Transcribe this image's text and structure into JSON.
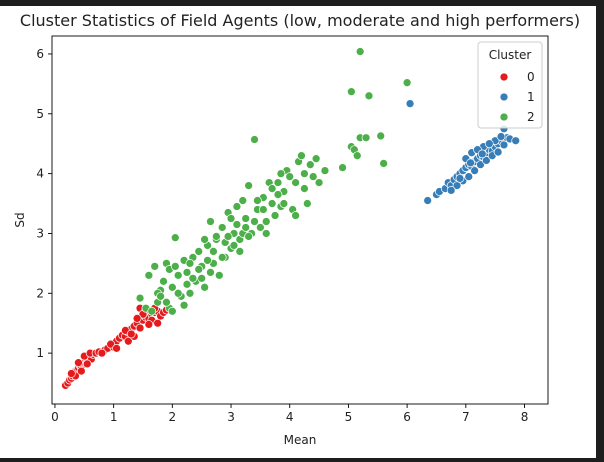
{
  "chart_data": {
    "type": "scatter",
    "title": "Cluster Statistics of Field Agents (low, moderate and high performers)",
    "xlabel": "Mean",
    "ylabel": "Sd",
    "xlim": [
      -0.05,
      8.4
    ],
    "ylim": [
      0.15,
      6.3
    ],
    "xticks": [
      0,
      1,
      2,
      3,
      4,
      5,
      6,
      7,
      8
    ],
    "yticks": [
      1,
      2,
      3,
      4,
      5,
      6
    ],
    "grid": false,
    "legend": {
      "title": "Cluster",
      "placement": "top-right"
    },
    "series": [
      {
        "name": "0",
        "color": "#e41a1c",
        "points": [
          [
            0.18,
            0.46
          ],
          [
            0.22,
            0.5
          ],
          [
            0.25,
            0.55
          ],
          [
            0.28,
            0.58
          ],
          [
            0.3,
            0.62
          ],
          [
            0.32,
            0.66
          ],
          [
            0.35,
            0.7
          ],
          [
            0.38,
            0.72
          ],
          [
            0.4,
            0.76
          ],
          [
            0.42,
            0.8
          ],
          [
            0.45,
            0.78
          ],
          [
            0.48,
            0.84
          ],
          [
            0.5,
            0.86
          ],
          [
            0.52,
            0.9
          ],
          [
            0.55,
            0.88
          ],
          [
            0.58,
            0.92
          ],
          [
            0.6,
            0.95
          ],
          [
            0.62,
            0.9
          ],
          [
            0.65,
            0.98
          ],
          [
            0.35,
            0.62
          ],
          [
            0.45,
            0.7
          ],
          [
            0.55,
            0.82
          ],
          [
            0.28,
            0.66
          ],
          [
            0.4,
            0.84
          ],
          [
            0.5,
            0.95
          ],
          [
            0.6,
            1.0
          ],
          [
            0.7,
            1.0
          ],
          [
            0.75,
            1.02
          ],
          [
            0.85,
            1.05
          ],
          [
            0.9,
            1.08
          ],
          [
            1.0,
            1.1
          ],
          [
            1.05,
            1.2
          ],
          [
            1.1,
            1.25
          ],
          [
            1.15,
            1.3
          ],
          [
            1.2,
            1.28
          ],
          [
            1.25,
            1.35
          ],
          [
            1.3,
            1.4
          ],
          [
            1.35,
            1.45
          ],
          [
            1.4,
            1.5
          ],
          [
            1.45,
            1.42
          ],
          [
            1.5,
            1.55
          ],
          [
            1.55,
            1.6
          ],
          [
            1.6,
            1.58
          ],
          [
            1.65,
            1.65
          ],
          [
            1.7,
            1.68
          ],
          [
            1.75,
            1.7
          ],
          [
            1.8,
            1.62
          ],
          [
            1.45,
            1.75
          ],
          [
            1.55,
            1.72
          ],
          [
            1.65,
            1.55
          ],
          [
            1.85,
            1.68
          ],
          [
            1.9,
            1.72
          ],
          [
            1.25,
            1.2
          ],
          [
            1.35,
            1.28
          ],
          [
            0.95,
            1.15
          ],
          [
            1.75,
            1.5
          ],
          [
            1.5,
            1.65
          ],
          [
            1.6,
            1.48
          ],
          [
            1.2,
            1.38
          ],
          [
            1.4,
            1.58
          ],
          [
            0.8,
            1.0
          ],
          [
            1.05,
            1.08
          ],
          [
            1.3,
            1.32
          ],
          [
            1.7,
            1.75
          ]
        ]
      },
      {
        "name": "1",
        "color": "#377eb8",
        "points": [
          [
            6.05,
            5.17
          ],
          [
            6.35,
            3.55
          ],
          [
            6.5,
            3.65
          ],
          [
            6.55,
            3.7
          ],
          [
            6.65,
            3.75
          ],
          [
            6.7,
            3.85
          ],
          [
            6.75,
            3.8
          ],
          [
            6.8,
            3.9
          ],
          [
            6.85,
            3.95
          ],
          [
            6.9,
            4.0
          ],
          [
            6.95,
            4.05
          ],
          [
            7.0,
            4.1
          ],
          [
            7.05,
            4.15
          ],
          [
            7.1,
            4.12
          ],
          [
            7.15,
            4.2
          ],
          [
            7.2,
            4.25
          ],
          [
            7.25,
            4.3
          ],
          [
            7.3,
            4.28
          ],
          [
            7.35,
            4.35
          ],
          [
            7.4,
            4.4
          ],
          [
            7.45,
            4.38
          ],
          [
            7.5,
            4.45
          ],
          [
            7.55,
            4.5
          ],
          [
            7.6,
            4.55
          ],
          [
            7.65,
            4.48
          ],
          [
            7.7,
            4.6
          ],
          [
            7.75,
            4.58
          ],
          [
            7.85,
            4.55
          ],
          [
            7.65,
            4.75
          ],
          [
            6.95,
            3.88
          ],
          [
            7.05,
            3.95
          ],
          [
            7.15,
            4.05
          ],
          [
            7.25,
            4.15
          ],
          [
            7.35,
            4.22
          ],
          [
            7.45,
            4.3
          ],
          [
            7.55,
            4.36
          ],
          [
            6.85,
            3.8
          ],
          [
            6.75,
            3.72
          ],
          [
            7.0,
            4.25
          ],
          [
            7.1,
            4.35
          ],
          [
            7.3,
            4.45
          ],
          [
            7.5,
            4.55
          ],
          [
            7.2,
            4.4
          ],
          [
            7.4,
            4.5
          ],
          [
            6.9,
            3.92
          ],
          [
            7.6,
            4.62
          ],
          [
            7.08,
            4.18
          ],
          [
            7.28,
            4.33
          ]
        ]
      },
      {
        "name": "2",
        "color": "#4daf4a",
        "points": [
          [
            1.45,
            1.92
          ],
          [
            1.55,
            1.75
          ],
          [
            1.6,
            2.3
          ],
          [
            1.7,
            2.45
          ],
          [
            1.75,
            1.85
          ],
          [
            1.8,
            2.05
          ],
          [
            1.85,
            2.2
          ],
          [
            1.9,
            2.5
          ],
          [
            1.95,
            2.4
          ],
          [
            2.0,
            2.1
          ],
          [
            2.05,
            2.93
          ],
          [
            2.1,
            2.3
          ],
          [
            2.15,
            1.95
          ],
          [
            2.2,
            2.55
          ],
          [
            2.25,
            2.35
          ],
          [
            2.3,
            2.0
          ],
          [
            2.35,
            2.6
          ],
          [
            2.4,
            2.2
          ],
          [
            2.45,
            2.7
          ],
          [
            2.5,
            2.45
          ],
          [
            2.55,
            2.1
          ],
          [
            2.6,
            2.8
          ],
          [
            2.65,
            3.2
          ],
          [
            2.7,
            2.5
          ],
          [
            2.75,
            2.9
          ],
          [
            2.8,
            2.3
          ],
          [
            2.85,
            3.1
          ],
          [
            2.9,
            2.6
          ],
          [
            2.95,
            3.35
          ],
          [
            3.0,
            2.75
          ],
          [
            3.05,
            3.0
          ],
          [
            3.1,
            3.45
          ],
          [
            3.15,
            2.9
          ],
          [
            3.2,
            3.55
          ],
          [
            3.25,
            3.25
          ],
          [
            3.3,
            3.8
          ],
          [
            3.35,
            3.0
          ],
          [
            3.4,
            4.57
          ],
          [
            3.45,
            3.4
          ],
          [
            3.5,
            3.1
          ],
          [
            3.55,
            3.6
          ],
          [
            3.6,
            3.2
          ],
          [
            3.65,
            3.85
          ],
          [
            3.7,
            3.5
          ],
          [
            3.75,
            3.3
          ],
          [
            3.8,
            3.85
          ],
          [
            3.85,
            3.45
          ],
          [
            3.9,
            3.7
          ],
          [
            3.95,
            4.05
          ],
          [
            4.0,
            3.95
          ],
          [
            4.05,
            3.4
          ],
          [
            4.1,
            3.3
          ],
          [
            4.15,
            4.2
          ],
          [
            4.2,
            4.3
          ],
          [
            4.25,
            3.75
          ],
          [
            4.3,
            3.5
          ],
          [
            4.35,
            4.15
          ],
          [
            4.4,
            3.95
          ],
          [
            4.5,
            3.85
          ],
          [
            4.6,
            4.05
          ],
          [
            4.9,
            4.1
          ],
          [
            5.05,
            4.45
          ],
          [
            5.1,
            4.4
          ],
          [
            5.15,
            4.3
          ],
          [
            5.05,
            5.37
          ],
          [
            5.2,
            4.6
          ],
          [
            5.3,
            4.6
          ],
          [
            5.35,
            5.3
          ],
          [
            5.55,
            4.63
          ],
          [
            5.6,
            4.17
          ],
          [
            5.2,
            6.04
          ],
          [
            6.0,
            5.52
          ],
          [
            1.65,
            1.7
          ],
          [
            1.75,
            2.0
          ],
          [
            1.95,
            1.75
          ],
          [
            2.05,
            2.45
          ],
          [
            2.3,
            2.5
          ],
          [
            2.5,
            2.25
          ],
          [
            2.7,
            2.7
          ],
          [
            2.85,
            2.6
          ],
          [
            3.05,
            2.8
          ],
          [
            3.2,
            3.0
          ],
          [
            3.4,
            3.2
          ],
          [
            3.6,
            3.0
          ],
          [
            3.8,
            3.65
          ],
          [
            1.9,
            1.85
          ],
          [
            2.1,
            2.0
          ],
          [
            2.2,
            1.8
          ],
          [
            2.45,
            2.4
          ],
          [
            2.6,
            2.55
          ],
          [
            2.9,
            2.85
          ],
          [
            3.1,
            3.15
          ],
          [
            3.3,
            2.95
          ],
          [
            3.55,
            3.4
          ],
          [
            3.7,
            3.75
          ],
          [
            3.9,
            3.5
          ],
          [
            4.1,
            3.85
          ],
          [
            4.25,
            4.0
          ],
          [
            2.0,
            1.7
          ],
          [
            2.35,
            2.25
          ],
          [
            2.75,
            2.95
          ],
          [
            3.15,
            2.7
          ],
          [
            1.8,
            1.95
          ],
          [
            2.25,
            2.15
          ],
          [
            2.65,
            2.35
          ],
          [
            3.0,
            3.25
          ],
          [
            3.45,
            3.55
          ],
          [
            3.85,
            4.0
          ],
          [
            4.45,
            4.25
          ],
          [
            2.55,
            2.9
          ],
          [
            2.95,
            2.95
          ],
          [
            3.25,
            3.1
          ]
        ]
      }
    ]
  }
}
